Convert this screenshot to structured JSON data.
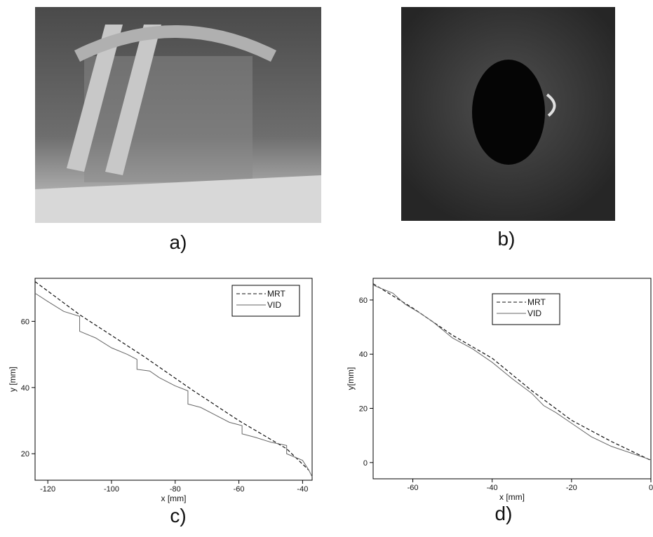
{
  "captions": [
    "a)",
    "b)",
    "c)",
    "d)"
  ],
  "chart_data": [
    {
      "type": "line",
      "xlabel": "x [mm]",
      "ylabel": "y [mm]",
      "xlim": [
        -124,
        -37
      ],
      "ylim": [
        12,
        73
      ],
      "xticks": [
        -120,
        -100,
        -80,
        -60,
        -40
      ],
      "yticks": [
        20,
        40,
        60
      ],
      "legend": "upper right",
      "series": [
        {
          "name": "MRT",
          "color": "#111111",
          "style": "dashed",
          "x": [
            -124,
            -110,
            -90,
            -75,
            -60,
            -45,
            -38
          ],
          "values": [
            72,
            62,
            49.5,
            39.5,
            30,
            21.5,
            15
          ]
        },
        {
          "name": "VID",
          "color": "#666666",
          "style": "solid",
          "x": [
            -124,
            -120,
            -115,
            -110,
            -110,
            -105,
            -100,
            -95,
            -92,
            -92,
            -88,
            -85,
            -80,
            -76,
            -76,
            -72,
            -68,
            -63,
            -59,
            -59,
            -55,
            -50,
            -45,
            -45,
            -40,
            -38,
            -37
          ],
          "values": [
            68.5,
            66,
            63,
            61.5,
            57,
            55,
            52,
            50,
            48.5,
            45.5,
            45,
            43,
            40.5,
            39,
            35,
            34,
            32,
            29.5,
            28.5,
            26,
            25,
            23.5,
            22.5,
            20,
            18,
            15,
            13
          ]
        }
      ]
    },
    {
      "type": "line",
      "xlabel": "x [mm]",
      "ylabel": "y[mm]",
      "xlim": [
        -70,
        0
      ],
      "ylim": [
        -6,
        68
      ],
      "xticks": [
        -60,
        -40,
        -20,
        0
      ],
      "yticks": [
        0,
        20,
        40,
        60
      ],
      "legend": "upper center",
      "series": [
        {
          "name": "MRT",
          "color": "#111111",
          "style": "dashed",
          "x": [
            -70,
            -60,
            -50,
            -40,
            -30,
            -20,
            -10,
            0
          ],
          "values": [
            66,
            57,
            47,
            38.5,
            26.5,
            15.6,
            7.8,
            0.8
          ]
        },
        {
          "name": "VID",
          "color": "#666666",
          "style": "solid",
          "x": [
            -70,
            -65,
            -62,
            -58,
            -55,
            -50,
            -45,
            -40,
            -35,
            -30,
            -27,
            -24,
            -20,
            -15,
            -10,
            -5,
            0
          ],
          "values": [
            65.5,
            62.5,
            58.5,
            55,
            52,
            46,
            42,
            37,
            31,
            25.5,
            21,
            18.5,
            14.5,
            9.5,
            6,
            3.5,
            1
          ]
        }
      ]
    }
  ]
}
